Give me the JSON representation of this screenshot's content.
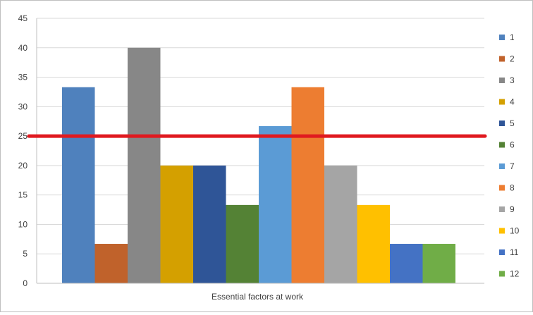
{
  "chart_data": {
    "type": "bar",
    "title": "",
    "xlabel": "",
    "ylabel": "",
    "categories": [
      "Essential factors at work"
    ],
    "ylim": [
      0,
      45
    ],
    "y_ticks": [
      "0",
      "5",
      "10",
      "15",
      "20",
      "25",
      "30",
      "35",
      "40",
      "45"
    ],
    "grid": "horizontal",
    "legend_position": "right",
    "series": [
      {
        "name": "1",
        "values": [
          33.3
        ],
        "color": "#4f81bd"
      },
      {
        "name": "2",
        "values": [
          6.7
        ],
        "color": "#c0622b"
      },
      {
        "name": "3",
        "values": [
          40
        ],
        "color": "#878787"
      },
      {
        "name": "4",
        "values": [
          20
        ],
        "color": "#d4a000"
      },
      {
        "name": "5",
        "values": [
          20
        ],
        "color": "#2f5597"
      },
      {
        "name": "6",
        "values": [
          13.3
        ],
        "color": "#548235"
      },
      {
        "name": "7",
        "values": [
          26.7
        ],
        "color": "#5b9bd5"
      },
      {
        "name": "8",
        "values": [
          33.3
        ],
        "color": "#ed7d31"
      },
      {
        "name": "9",
        "values": [
          20
        ],
        "color": "#a5a5a5"
      },
      {
        "name": "10",
        "values": [
          13.3
        ],
        "color": "#ffc000"
      },
      {
        "name": "11",
        "values": [
          6.7
        ],
        "color": "#4472c4"
      },
      {
        "name": "12",
        "values": [
          6.7
        ],
        "color": "#70ad47"
      }
    ],
    "reference_line": {
      "value": 25,
      "color": "#e0191f"
    }
  }
}
